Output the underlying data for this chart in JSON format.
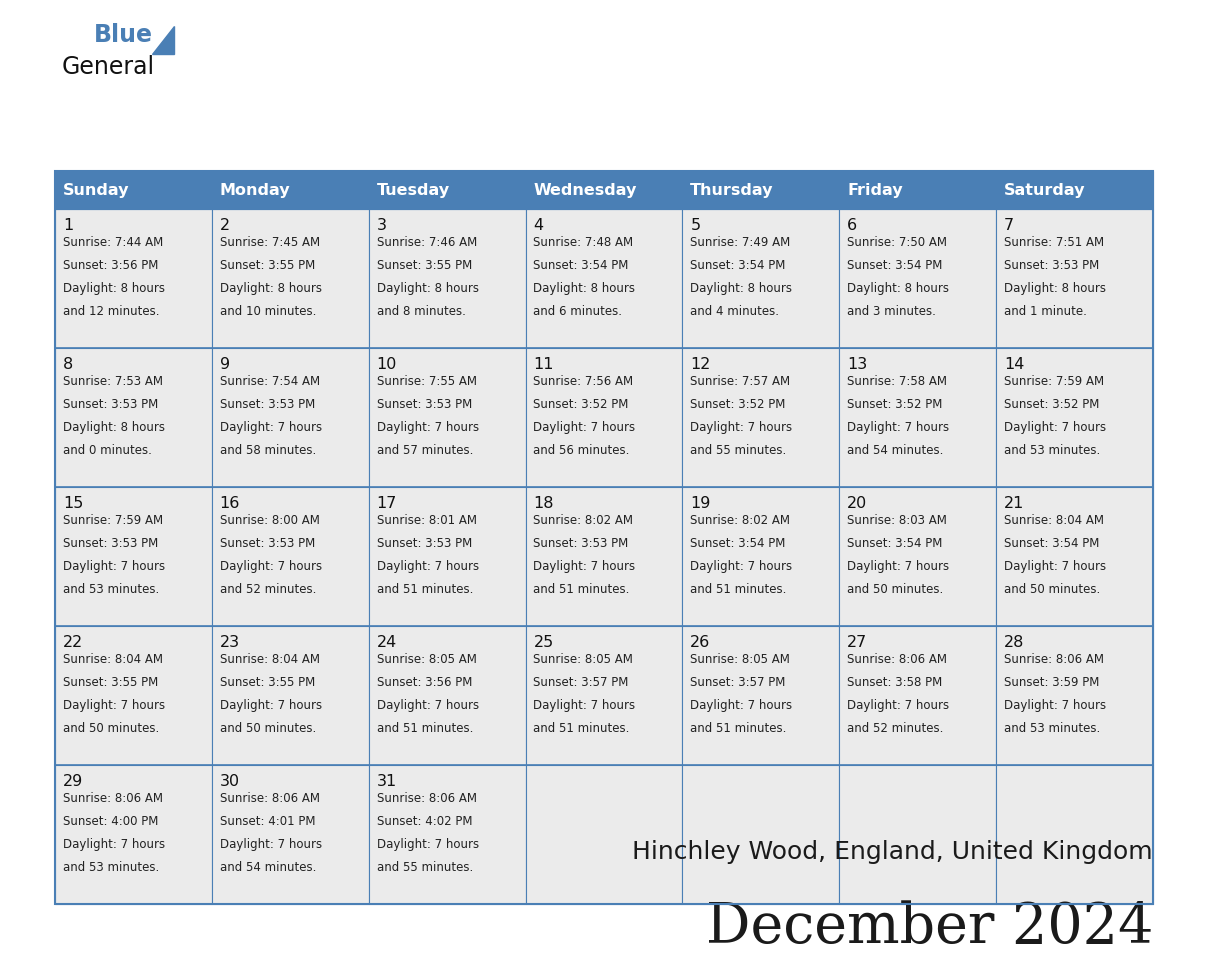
{
  "title": "December 2024",
  "subtitle": "Hinchley Wood, England, United Kingdom",
  "days_of_week": [
    "Sunday",
    "Monday",
    "Tuesday",
    "Wednesday",
    "Thursday",
    "Friday",
    "Saturday"
  ],
  "header_bg": "#4a7fb5",
  "header_text": "#ffffff",
  "cell_bg": "#ebebeb",
  "border_color": "#4a7fb5",
  "title_color": "#1a1a1a",
  "subtitle_color": "#1a1a1a",
  "cell_text_color": "#222222",
  "day_num_color": "#111111",
  "logo_text1": "General",
  "logo_text2": "Blue",
  "logo_triangle_color": "#4a7fb5",
  "logo_text1_color": "#111111",
  "logo_text2_color": "#4a7fb5",
  "weeks": [
    [
      {
        "day": "1",
        "sunrise": "7:44 AM",
        "sunset": "3:56 PM",
        "daylight_line1": "Daylight: 8 hours",
        "daylight_line2": "and 12 minutes."
      },
      {
        "day": "2",
        "sunrise": "7:45 AM",
        "sunset": "3:55 PM",
        "daylight_line1": "Daylight: 8 hours",
        "daylight_line2": "and 10 minutes."
      },
      {
        "day": "3",
        "sunrise": "7:46 AM",
        "sunset": "3:55 PM",
        "daylight_line1": "Daylight: 8 hours",
        "daylight_line2": "and 8 minutes."
      },
      {
        "day": "4",
        "sunrise": "7:48 AM",
        "sunset": "3:54 PM",
        "daylight_line1": "Daylight: 8 hours",
        "daylight_line2": "and 6 minutes."
      },
      {
        "day": "5",
        "sunrise": "7:49 AM",
        "sunset": "3:54 PM",
        "daylight_line1": "Daylight: 8 hours",
        "daylight_line2": "and 4 minutes."
      },
      {
        "day": "6",
        "sunrise": "7:50 AM",
        "sunset": "3:54 PM",
        "daylight_line1": "Daylight: 8 hours",
        "daylight_line2": "and 3 minutes."
      },
      {
        "day": "7",
        "sunrise": "7:51 AM",
        "sunset": "3:53 PM",
        "daylight_line1": "Daylight: 8 hours",
        "daylight_line2": "and 1 minute."
      }
    ],
    [
      {
        "day": "8",
        "sunrise": "7:53 AM",
        "sunset": "3:53 PM",
        "daylight_line1": "Daylight: 8 hours",
        "daylight_line2": "and 0 minutes."
      },
      {
        "day": "9",
        "sunrise": "7:54 AM",
        "sunset": "3:53 PM",
        "daylight_line1": "Daylight: 7 hours",
        "daylight_line2": "and 58 minutes."
      },
      {
        "day": "10",
        "sunrise": "7:55 AM",
        "sunset": "3:53 PM",
        "daylight_line1": "Daylight: 7 hours",
        "daylight_line2": "and 57 minutes."
      },
      {
        "day": "11",
        "sunrise": "7:56 AM",
        "sunset": "3:52 PM",
        "daylight_line1": "Daylight: 7 hours",
        "daylight_line2": "and 56 minutes."
      },
      {
        "day": "12",
        "sunrise": "7:57 AM",
        "sunset": "3:52 PM",
        "daylight_line1": "Daylight: 7 hours",
        "daylight_line2": "and 55 minutes."
      },
      {
        "day": "13",
        "sunrise": "7:58 AM",
        "sunset": "3:52 PM",
        "daylight_line1": "Daylight: 7 hours",
        "daylight_line2": "and 54 minutes."
      },
      {
        "day": "14",
        "sunrise": "7:59 AM",
        "sunset": "3:52 PM",
        "daylight_line1": "Daylight: 7 hours",
        "daylight_line2": "and 53 minutes."
      }
    ],
    [
      {
        "day": "15",
        "sunrise": "7:59 AM",
        "sunset": "3:53 PM",
        "daylight_line1": "Daylight: 7 hours",
        "daylight_line2": "and 53 minutes."
      },
      {
        "day": "16",
        "sunrise": "8:00 AM",
        "sunset": "3:53 PM",
        "daylight_line1": "Daylight: 7 hours",
        "daylight_line2": "and 52 minutes."
      },
      {
        "day": "17",
        "sunrise": "8:01 AM",
        "sunset": "3:53 PM",
        "daylight_line1": "Daylight: 7 hours",
        "daylight_line2": "and 51 minutes."
      },
      {
        "day": "18",
        "sunrise": "8:02 AM",
        "sunset": "3:53 PM",
        "daylight_line1": "Daylight: 7 hours",
        "daylight_line2": "and 51 minutes."
      },
      {
        "day": "19",
        "sunrise": "8:02 AM",
        "sunset": "3:54 PM",
        "daylight_line1": "Daylight: 7 hours",
        "daylight_line2": "and 51 minutes."
      },
      {
        "day": "20",
        "sunrise": "8:03 AM",
        "sunset": "3:54 PM",
        "daylight_line1": "Daylight: 7 hours",
        "daylight_line2": "and 50 minutes."
      },
      {
        "day": "21",
        "sunrise": "8:04 AM",
        "sunset": "3:54 PM",
        "daylight_line1": "Daylight: 7 hours",
        "daylight_line2": "and 50 minutes."
      }
    ],
    [
      {
        "day": "22",
        "sunrise": "8:04 AM",
        "sunset": "3:55 PM",
        "daylight_line1": "Daylight: 7 hours",
        "daylight_line2": "and 50 minutes."
      },
      {
        "day": "23",
        "sunrise": "8:04 AM",
        "sunset": "3:55 PM",
        "daylight_line1": "Daylight: 7 hours",
        "daylight_line2": "and 50 minutes."
      },
      {
        "day": "24",
        "sunrise": "8:05 AM",
        "sunset": "3:56 PM",
        "daylight_line1": "Daylight: 7 hours",
        "daylight_line2": "and 51 minutes."
      },
      {
        "day": "25",
        "sunrise": "8:05 AM",
        "sunset": "3:57 PM",
        "daylight_line1": "Daylight: 7 hours",
        "daylight_line2": "and 51 minutes."
      },
      {
        "day": "26",
        "sunrise": "8:05 AM",
        "sunset": "3:57 PM",
        "daylight_line1": "Daylight: 7 hours",
        "daylight_line2": "and 51 minutes."
      },
      {
        "day": "27",
        "sunrise": "8:06 AM",
        "sunset": "3:58 PM",
        "daylight_line1": "Daylight: 7 hours",
        "daylight_line2": "and 52 minutes."
      },
      {
        "day": "28",
        "sunrise": "8:06 AM",
        "sunset": "3:59 PM",
        "daylight_line1": "Daylight: 7 hours",
        "daylight_line2": "and 53 minutes."
      }
    ],
    [
      {
        "day": "29",
        "sunrise": "8:06 AM",
        "sunset": "4:00 PM",
        "daylight_line1": "Daylight: 7 hours",
        "daylight_line2": "and 53 minutes."
      },
      {
        "day": "30",
        "sunrise": "8:06 AM",
        "sunset": "4:01 PM",
        "daylight_line1": "Daylight: 7 hours",
        "daylight_line2": "and 54 minutes."
      },
      {
        "day": "31",
        "sunrise": "8:06 AM",
        "sunset": "4:02 PM",
        "daylight_line1": "Daylight: 7 hours",
        "daylight_line2": "and 55 minutes."
      },
      null,
      null,
      null,
      null
    ]
  ]
}
